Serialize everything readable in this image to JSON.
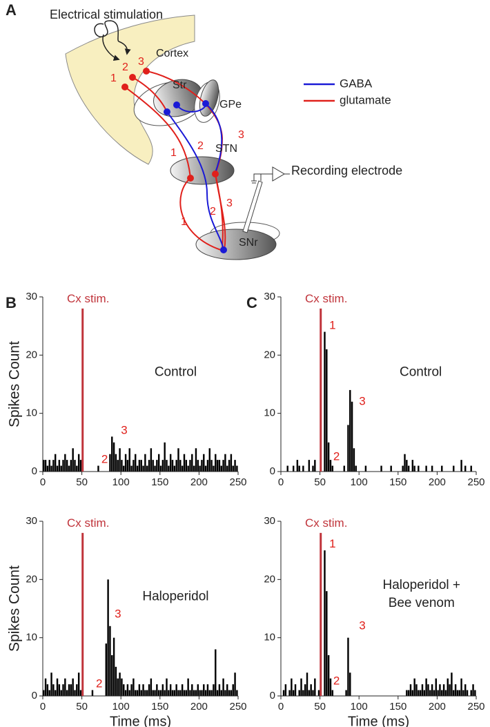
{
  "panels": {
    "a": "A",
    "b": "B",
    "c": "C"
  },
  "diagram": {
    "stimulation": "Electrical stimulation",
    "cortex": "Cortex",
    "str": "Str",
    "gpe": "GPe",
    "stn": "STN",
    "snr": "SNr",
    "recording": "Recording electrode",
    "legend": [
      {
        "name": "GABA",
        "color": "#1a1ad6"
      },
      {
        "name": "glutamate",
        "color": "#e0201b"
      }
    ],
    "path_labels": [
      "1",
      "2",
      "3",
      "1",
      "2",
      "3",
      "1",
      "2",
      "3"
    ]
  },
  "chart_data": [
    {
      "type": "histogram",
      "condition": [
        "Control"
      ],
      "color": "#000000",
      "stimulus": {
        "label": "Cx stim.",
        "x": 51,
        "color": "#c0333a"
      },
      "annotations": [
        "2",
        "3"
      ],
      "annotation_color": "#e0201b",
      "ylabel": "Spikes Count",
      "xlim": [
        0,
        250
      ],
      "ylim": [
        0,
        30
      ],
      "xticks": [
        0,
        50,
        100,
        150,
        200,
        250
      ],
      "yticks": [
        0,
        10,
        20,
        30
      ],
      "bins": [
        0,
        2.5,
        5,
        7.5,
        10,
        12.5,
        15,
        17.5,
        20,
        22.5,
        25,
        27.5,
        30,
        32.5,
        35,
        37.5,
        40,
        42.5,
        45,
        47.5,
        50,
        52.5,
        55,
        57.5,
        60,
        62.5,
        65,
        67.5,
        70,
        72.5,
        75,
        77.5,
        80,
        82.5,
        85,
        87.5,
        90,
        92.5,
        95,
        97.5,
        100,
        102.5,
        105,
        107.5,
        110,
        112.5,
        115,
        117.5,
        120,
        122.5,
        125,
        127.5,
        130,
        132.5,
        135,
        137.5,
        140,
        142.5,
        145,
        147.5,
        150,
        152.5,
        155,
        157.5,
        160,
        162.5,
        165,
        167.5,
        170,
        172.5,
        175,
        177.5,
        180,
        182.5,
        185,
        187.5,
        190,
        192.5,
        195,
        197.5,
        200,
        202.5,
        205,
        207.5,
        210,
        212.5,
        215,
        217.5,
        220,
        222.5,
        225,
        227.5,
        230,
        232.5,
        235,
        237.5,
        240,
        242.5,
        245,
        247.5,
        250
      ],
      "counts": [
        2,
        2,
        1,
        2,
        1,
        2,
        3,
        1,
        2,
        1,
        2,
        3,
        2,
        1,
        2,
        4,
        2,
        1,
        3,
        2,
        0,
        0,
        0,
        0,
        0,
        0,
        0,
        0,
        1,
        0,
        0,
        0,
        0,
        0,
        3,
        6,
        5,
        3,
        2,
        4,
        2,
        1,
        3,
        2,
        4,
        1,
        2,
        3,
        1,
        2,
        2,
        1,
        3,
        1,
        2,
        4,
        2,
        1,
        2,
        3,
        1,
        2,
        5,
        2,
        1,
        3,
        2,
        1,
        2,
        4,
        2,
        1,
        3,
        2,
        1,
        2,
        3,
        1,
        4,
        2,
        1,
        2,
        3,
        1,
        2,
        4,
        2,
        1,
        3,
        2,
        2,
        1,
        2,
        3,
        1,
        2,
        3,
        1,
        2,
        1
      ]
    },
    {
      "type": "histogram",
      "condition": [
        "Control"
      ],
      "color": "#000000",
      "stimulus": {
        "label": "Cx stim.",
        "x": 51,
        "color": "#c0333a"
      },
      "annotations": [
        "1",
        "3",
        "2"
      ],
      "annotation_color": "#e0201b",
      "xlim": [
        0,
        250
      ],
      "ylim": [
        0,
        30
      ],
      "xticks": [
        0,
        50,
        100,
        150,
        200,
        250
      ],
      "yticks": [
        0,
        10,
        20,
        30
      ],
      "bins": [
        0,
        2.5,
        5,
        7.5,
        10,
        12.5,
        15,
        17.5,
        20,
        22.5,
        25,
        27.5,
        30,
        32.5,
        35,
        37.5,
        40,
        42.5,
        45,
        47.5,
        50,
        52.5,
        55,
        57.5,
        60,
        62.5,
        65,
        67.5,
        70,
        72.5,
        75,
        77.5,
        80,
        82.5,
        85,
        87.5,
        90,
        92.5,
        95,
        97.5,
        100,
        102.5,
        105,
        107.5,
        110,
        112.5,
        115,
        117.5,
        120,
        122.5,
        125,
        127.5,
        130,
        132.5,
        135,
        137.5,
        140,
        142.5,
        145,
        147.5,
        150,
        152.5,
        155,
        157.5,
        160,
        162.5,
        165,
        167.5,
        170,
        172.5,
        175,
        177.5,
        180,
        182.5,
        185,
        187.5,
        190,
        192.5,
        195,
        197.5,
        200,
        202.5,
        205,
        207.5,
        210,
        212.5,
        215,
        217.5,
        220,
        222.5,
        225,
        227.5,
        230,
        232.5,
        235,
        237.5,
        240,
        242.5,
        245,
        247.5,
        250
      ],
      "counts": [
        0,
        0,
        0,
        1,
        0,
        0,
        1,
        0,
        2,
        1,
        0,
        1,
        0,
        0,
        2,
        0,
        1,
        2,
        0,
        0,
        0,
        0,
        24,
        21,
        5,
        2,
        1,
        0,
        0,
        0,
        0,
        0,
        1,
        0,
        8,
        14,
        12,
        4,
        1,
        0,
        0,
        0,
        0,
        1,
        0,
        0,
        0,
        0,
        0,
        0,
        0,
        1,
        0,
        0,
        0,
        0,
        1,
        0,
        0,
        0,
        0,
        0,
        1,
        3,
        2,
        1,
        0,
        2,
        1,
        0,
        1,
        0,
        0,
        0,
        1,
        0,
        0,
        1,
        0,
        0,
        0,
        0,
        1,
        0,
        0,
        0,
        0,
        0,
        1,
        0,
        0,
        0,
        2,
        0,
        1,
        0,
        0,
        1,
        0,
        0
      ]
    },
    {
      "type": "histogram",
      "condition": [
        "Haloperidol"
      ],
      "color": "#000000",
      "stimulus": {
        "label": "Cx stim.",
        "x": 51,
        "color": "#c0333a"
      },
      "annotations": [
        "3",
        "2"
      ],
      "annotation_color": "#e0201b",
      "xlabel": "Time (ms)",
      "ylabel": "Spikes Count",
      "xlim": [
        0,
        250
      ],
      "ylim": [
        0,
        30
      ],
      "xticks": [
        0,
        50,
        100,
        150,
        200,
        250
      ],
      "yticks": [
        0,
        10,
        20,
        30
      ],
      "bins": [
        0,
        2.5,
        5,
        7.5,
        10,
        12.5,
        15,
        17.5,
        20,
        22.5,
        25,
        27.5,
        30,
        32.5,
        35,
        37.5,
        40,
        42.5,
        45,
        47.5,
        50,
        52.5,
        55,
        57.5,
        60,
        62.5,
        65,
        67.5,
        70,
        72.5,
        75,
        77.5,
        80,
        82.5,
        85,
        87.5,
        90,
        92.5,
        95,
        97.5,
        100,
        102.5,
        105,
        107.5,
        110,
        112.5,
        115,
        117.5,
        120,
        122.5,
        125,
        127.5,
        130,
        132.5,
        135,
        137.5,
        140,
        142.5,
        145,
        147.5,
        150,
        152.5,
        155,
        157.5,
        160,
        162.5,
        165,
        167.5,
        170,
        172.5,
        175,
        177.5,
        180,
        182.5,
        185,
        187.5,
        190,
        192.5,
        195,
        197.5,
        200,
        202.5,
        205,
        207.5,
        210,
        212.5,
        215,
        217.5,
        220,
        222.5,
        225,
        227.5,
        230,
        232.5,
        235,
        237.5,
        240,
        242.5,
        245,
        247.5,
        250
      ],
      "counts": [
        1,
        3,
        2,
        1,
        4,
        2,
        1,
        3,
        2,
        1,
        2,
        3,
        1,
        2,
        2,
        3,
        1,
        2,
        4,
        1,
        0,
        0,
        0,
        0,
        0,
        1,
        0,
        0,
        0,
        0,
        0,
        0,
        9,
        20,
        12,
        7,
        10,
        5,
        3,
        4,
        3,
        2,
        1,
        2,
        1,
        2,
        3,
        1,
        1,
        2,
        1,
        2,
        1,
        1,
        2,
        3,
        1,
        1,
        2,
        1,
        1,
        2,
        1,
        3,
        1,
        2,
        1,
        1,
        2,
        1,
        1,
        2,
        1,
        1,
        3,
        1,
        2,
        1,
        1,
        2,
        1,
        1,
        2,
        1,
        2,
        1,
        1,
        2,
        8,
        1,
        2,
        1,
        3,
        1,
        2,
        1,
        1,
        2,
        4,
        1
      ]
    },
    {
      "type": "histogram",
      "condition": [
        "Haloperidol +",
        "Bee venom"
      ],
      "color": "#000000",
      "stimulus": {
        "label": "Cx stim.",
        "x": 51,
        "color": "#c0333a"
      },
      "annotations": [
        "1",
        "3",
        "2"
      ],
      "annotation_color": "#e0201b",
      "xlabel": "Time (ms)",
      "xlim": [
        0,
        250
      ],
      "ylim": [
        0,
        30
      ],
      "xticks": [
        0,
        50,
        100,
        150,
        200,
        250
      ],
      "yticks": [
        0,
        10,
        20,
        30
      ],
      "bins": [
        0,
        2.5,
        5,
        7.5,
        10,
        12.5,
        15,
        17.5,
        20,
        22.5,
        25,
        27.5,
        30,
        32.5,
        35,
        37.5,
        40,
        42.5,
        45,
        47.5,
        50,
        52.5,
        55,
        57.5,
        60,
        62.5,
        65,
        67.5,
        70,
        72.5,
        75,
        77.5,
        80,
        82.5,
        85,
        87.5,
        90,
        92.5,
        95,
        97.5,
        100,
        102.5,
        105,
        107.5,
        110,
        112.5,
        115,
        117.5,
        120,
        122.5,
        125,
        127.5,
        130,
        132.5,
        135,
        137.5,
        140,
        142.5,
        145,
        147.5,
        150,
        152.5,
        155,
        157.5,
        160,
        162.5,
        165,
        167.5,
        170,
        172.5,
        175,
        177.5,
        180,
        182.5,
        185,
        187.5,
        190,
        192.5,
        195,
        197.5,
        200,
        202.5,
        205,
        207.5,
        210,
        212.5,
        215,
        217.5,
        220,
        222.5,
        225,
        227.5,
        230,
        232.5,
        235,
        237.5,
        240,
        242.5,
        245,
        247.5,
        250
      ],
      "counts": [
        0,
        1,
        2,
        0,
        1,
        3,
        1,
        2,
        0,
        1,
        3,
        1,
        2,
        4,
        1,
        2,
        1,
        3,
        0,
        1,
        0,
        0,
        25,
        18,
        7,
        3,
        1,
        0,
        0,
        0,
        0,
        0,
        0,
        1,
        10,
        4,
        0,
        0,
        0,
        0,
        0,
        0,
        0,
        0,
        0,
        0,
        0,
        0,
        0,
        0,
        0,
        0,
        0,
        0,
        0,
        0,
        0,
        0,
        0,
        0,
        0,
        0,
        0,
        0,
        1,
        1,
        2,
        1,
        3,
        2,
        1,
        1,
        2,
        1,
        3,
        2,
        1,
        2,
        1,
        3,
        1,
        2,
        1,
        2,
        1,
        3,
        2,
        4,
        1,
        2,
        1,
        1,
        3,
        1,
        2,
        1,
        0,
        1,
        2,
        1
      ]
    }
  ]
}
